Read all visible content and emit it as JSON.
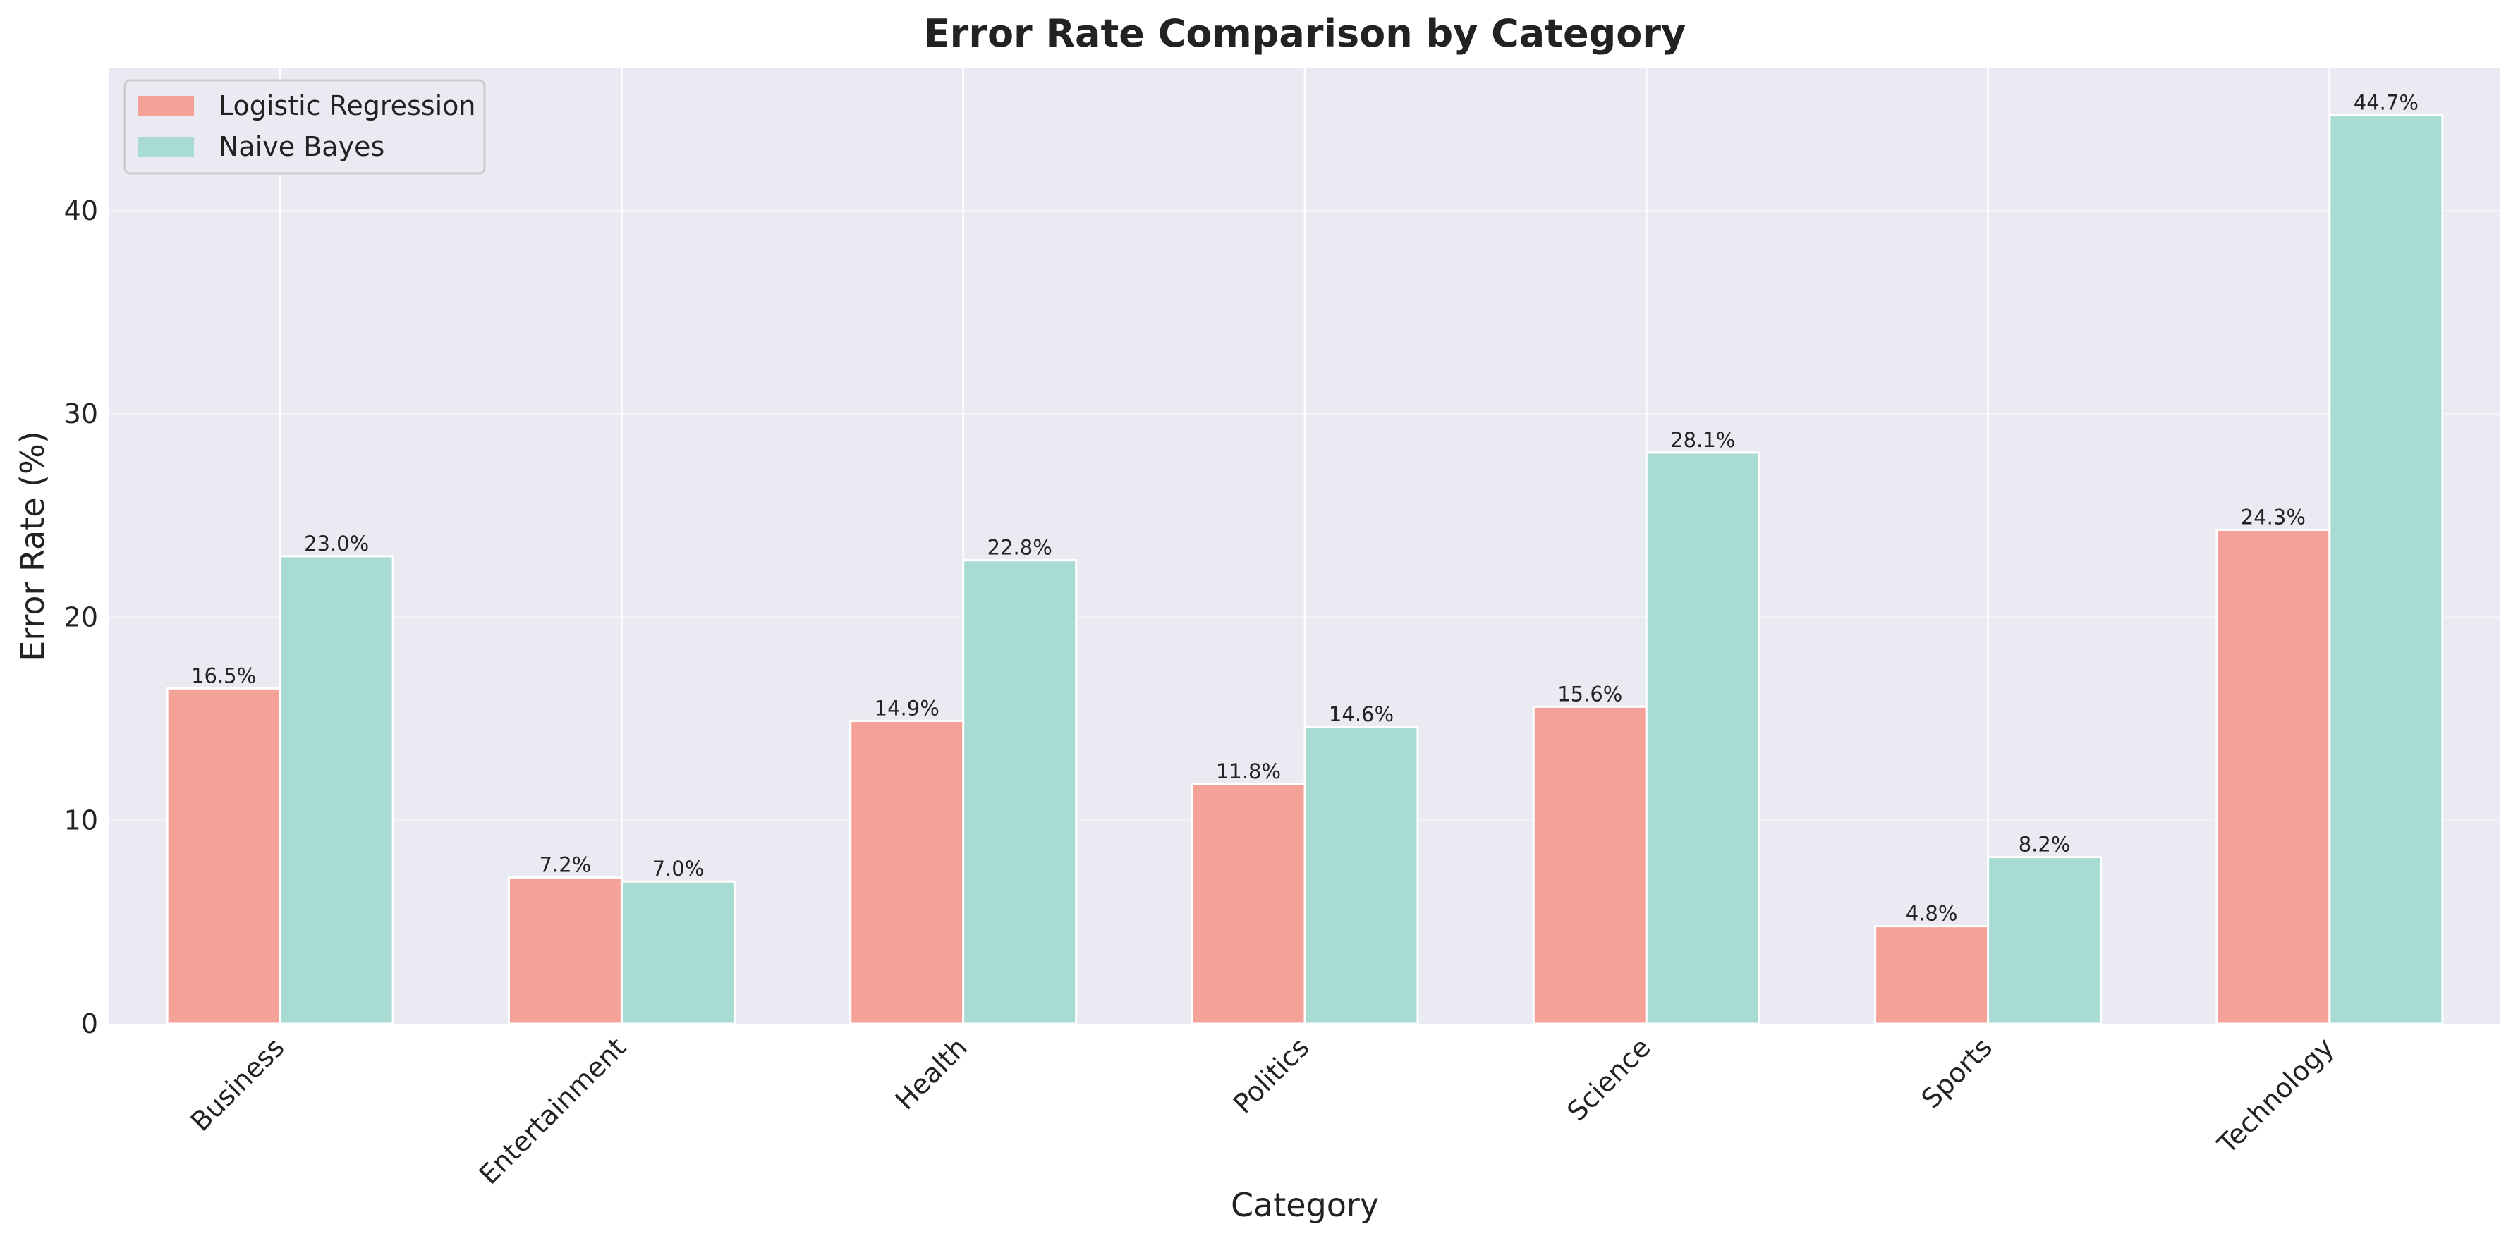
{
  "chart_data": {
    "type": "bar",
    "title": "Error Rate Comparison by Category",
    "xlabel": "Category",
    "ylabel": "Error Rate (%)",
    "categories": [
      "Business",
      "Entertainment",
      "Health",
      "Politics",
      "Science",
      "Sports",
      "Technology"
    ],
    "series": [
      {
        "name": "Logistic Regression",
        "color": "#f4a198",
        "values": [
          16.5,
          7.2,
          14.9,
          11.8,
          15.6,
          4.8,
          24.3
        ],
        "labels": [
          "16.5%",
          "7.2%",
          "14.9%",
          "11.8%",
          "15.6%",
          "4.8%",
          "24.3%"
        ]
      },
      {
        "name": "Naive Bayes",
        "color": "#a8dbd3",
        "values": [
          23.0,
          7.0,
          22.8,
          14.6,
          28.1,
          8.2,
          44.7
        ],
        "labels": [
          "23.0%",
          "7.0%",
          "22.8%",
          "14.6%",
          "28.1%",
          "8.2%",
          "44.7%"
        ]
      }
    ],
    "ylim": [
      0,
      47
    ],
    "yticks": [
      0,
      10,
      20,
      30,
      40
    ],
    "grid": true,
    "legend": "top-left",
    "background": "#eaeaf2"
  }
}
